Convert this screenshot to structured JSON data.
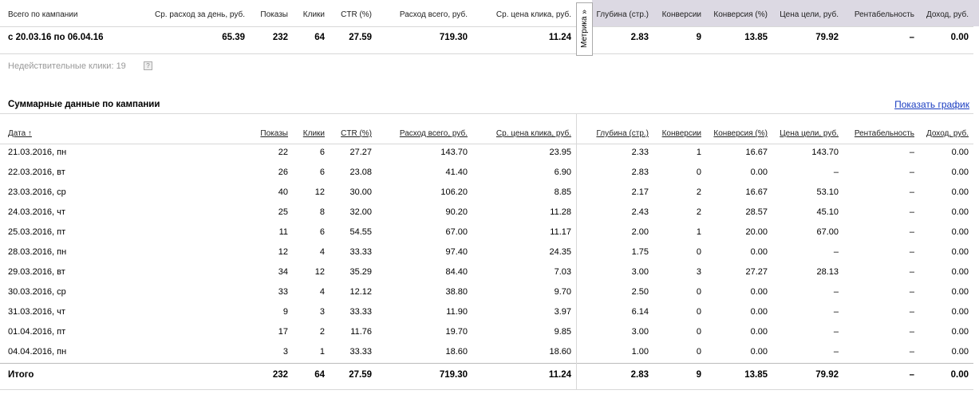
{
  "summary": {
    "metrika_tab": "Метрика »",
    "headers": [
      "Всего по кампании",
      "Ср. расход за день, руб.",
      "Показы",
      "Клики",
      "CTR (%)",
      "Расход всего, руб.",
      "Ср. цена клика, руб.",
      "Глубина (стр.)",
      "Конверсии",
      "Конверсия (%)",
      "Цена цели, руб.",
      "Рентабельность",
      "Доход, руб."
    ],
    "row": [
      "с 20.03.16 по 06.04.16",
      "65.39",
      "232",
      "64",
      "27.59",
      "719.30",
      "11.24",
      "2.83",
      "9",
      "13.85",
      "79.92",
      "–",
      "0.00"
    ]
  },
  "invalid_clicks": "Недействительные клики: 19",
  "invalid_clicks_help": "?",
  "daily": {
    "title": "Суммарные данные по кампании",
    "show_chart_link": "Показать график",
    "headers": [
      "Дата ↑",
      "Показы",
      "Клики",
      "CTR (%)",
      "Расход всего, руб.",
      "Ср. цена клика, руб.",
      "Глубина (стр.)",
      "Конверсии",
      "Конверсия (%)",
      "Цена цели, руб.",
      "Рентабельность",
      "Доход, руб."
    ],
    "rows": [
      [
        "21.03.2016, пн",
        "22",
        "6",
        "27.27",
        "143.70",
        "23.95",
        "2.33",
        "1",
        "16.67",
        "143.70",
        "–",
        "0.00"
      ],
      [
        "22.03.2016, вт",
        "26",
        "6",
        "23.08",
        "41.40",
        "6.90",
        "2.83",
        "0",
        "0.00",
        "–",
        "–",
        "0.00"
      ],
      [
        "23.03.2016, ср",
        "40",
        "12",
        "30.00",
        "106.20",
        "8.85",
        "2.17",
        "2",
        "16.67",
        "53.10",
        "–",
        "0.00"
      ],
      [
        "24.03.2016, чт",
        "25",
        "8",
        "32.00",
        "90.20",
        "11.28",
        "2.43",
        "2",
        "28.57",
        "45.10",
        "–",
        "0.00"
      ],
      [
        "25.03.2016, пт",
        "11",
        "6",
        "54.55",
        "67.00",
        "11.17",
        "2.00",
        "1",
        "20.00",
        "67.00",
        "–",
        "0.00"
      ],
      [
        "28.03.2016, пн",
        "12",
        "4",
        "33.33",
        "97.40",
        "24.35",
        "1.75",
        "0",
        "0.00",
        "–",
        "–",
        "0.00"
      ],
      [
        "29.03.2016, вт",
        "34",
        "12",
        "35.29",
        "84.40",
        "7.03",
        "3.00",
        "3",
        "27.27",
        "28.13",
        "–",
        "0.00"
      ],
      [
        "30.03.2016, ср",
        "33",
        "4",
        "12.12",
        "38.80",
        "9.70",
        "2.50",
        "0",
        "0.00",
        "–",
        "–",
        "0.00"
      ],
      [
        "31.03.2016, чт",
        "9",
        "3",
        "33.33",
        "11.90",
        "3.97",
        "6.14",
        "0",
        "0.00",
        "–",
        "–",
        "0.00"
      ],
      [
        "01.04.2016, пт",
        "17",
        "2",
        "11.76",
        "19.70",
        "9.85",
        "3.00",
        "0",
        "0.00",
        "–",
        "–",
        "0.00"
      ],
      [
        "04.04.2016, пн",
        "3",
        "1",
        "33.33",
        "18.60",
        "18.60",
        "1.00",
        "0",
        "0.00",
        "–",
        "–",
        "0.00"
      ]
    ],
    "total": [
      "Итого",
      "232",
      "64",
      "27.59",
      "719.30",
      "11.24",
      "2.83",
      "9",
      "13.85",
      "79.92",
      "–",
      "0.00"
    ]
  }
}
